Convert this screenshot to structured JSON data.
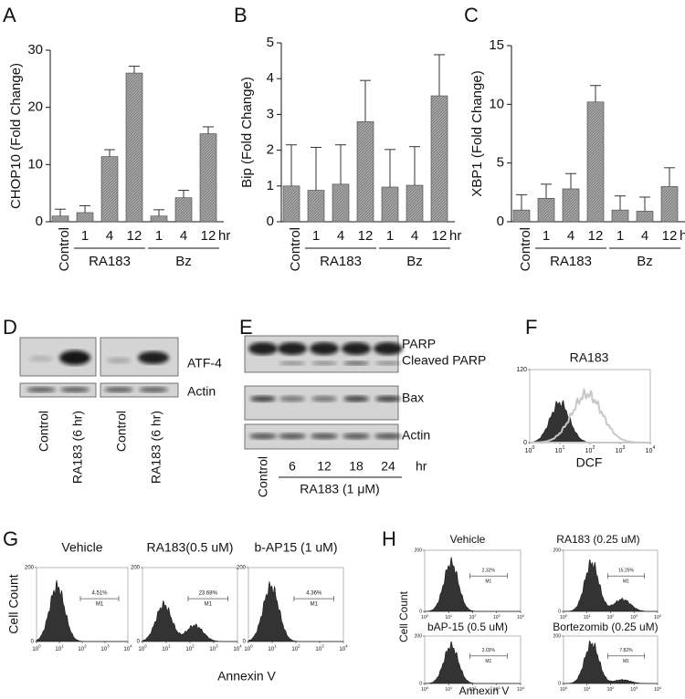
{
  "chart_data": [
    {
      "type": "bar",
      "letter": "A",
      "y_axis_label": "CHOP10 (Fold Change)",
      "categories": [
        "Control",
        "1",
        "4",
        "12",
        "1",
        "4",
        "12"
      ],
      "group_labels": [
        "RA183",
        "Bz"
      ],
      "x_unit": "hr",
      "values": [
        1,
        1.6,
        11.4,
        26,
        1,
        4.2,
        15.4
      ],
      "errors": [
        1.2,
        1.2,
        1.2,
        1.2,
        1.1,
        1.3,
        1.2
      ],
      "color": "#a8a8a8",
      "ylim": [
        0,
        30
      ],
      "yticks": [
        0,
        10,
        20,
        30
      ]
    },
    {
      "type": "bar",
      "letter": "B",
      "y_axis_label": "Bip (Fold Change)",
      "categories": [
        "Control",
        "1",
        "4",
        "12",
        "1",
        "4",
        "12"
      ],
      "group_labels": [
        "RA183",
        "Bz"
      ],
      "x_unit": "hr",
      "values": [
        1,
        0.88,
        1.05,
        2.8,
        0.97,
        1.02,
        3.52
      ],
      "errors": [
        1.15,
        1.2,
        1.1,
        1.15,
        1.05,
        1.08,
        1.15
      ],
      "color": "#a8a8a8",
      "ylim": [
        0,
        5
      ],
      "yticks": [
        0,
        1,
        2,
        3,
        4,
        5
      ]
    },
    {
      "type": "bar",
      "letter": "C",
      "y_axis_label": "XBP1 (Fold Change)",
      "categories": [
        "Control",
        "1",
        "4",
        "12",
        "1",
        "4",
        "12"
      ],
      "group_labels": [
        "RA183",
        "Bz"
      ],
      "x_unit": "hr",
      "values": [
        1,
        2,
        2.8,
        10.2,
        1,
        0.9,
        3
      ],
      "errors": [
        1.3,
        1.2,
        1.3,
        1.4,
        1.2,
        1.2,
        1.6
      ],
      "color": "#a8a8a8",
      "ylim": [
        0,
        15
      ],
      "yticks": [
        0,
        5,
        10,
        15
      ]
    }
  ],
  "blot_d": {
    "letter": "D",
    "rows": [
      "ATF-4",
      "Actin"
    ],
    "lanes": [
      "Control",
      "RA183 (6 hr)",
      "Control",
      "RA183 (6 hr)"
    ]
  },
  "blot_e": {
    "letter": "E",
    "rows": [
      "PARP",
      "Cleaved PARP",
      "Bax",
      "Actin"
    ],
    "lanes": [
      "Control",
      "6",
      "12",
      "18",
      "24"
    ],
    "unit": "hr",
    "treatment": "RA183 (1 μM)"
  },
  "flow_f": {
    "letter": "F",
    "title": "RA183",
    "x_axis_label": "DCF",
    "y_ticks": [
      0,
      120
    ],
    "x_tick_base": "10",
    "x_tick_exponents": [
      0,
      1,
      2,
      3,
      4
    ]
  },
  "flow_g": {
    "letter": "G",
    "y_axis_label": "Cell Count",
    "x_axis_label": "Annexin V",
    "y_ticks": [
      0,
      200
    ],
    "x_tick_base": "10",
    "x_tick_exponents": [
      0,
      1,
      2,
      3,
      4
    ],
    "plots": [
      {
        "title": "Vehicle",
        "gate_percent": "4.51%",
        "gate_label": "M1"
      },
      {
        "title": "RA183(0.5 uM)",
        "gate_percent": "23.68%",
        "gate_label": "M1"
      },
      {
        "title": "b-AP15 (1 uM)",
        "gate_percent": "4.36%",
        "gate_label": "M1"
      }
    ]
  },
  "flow_h": {
    "letter": "H",
    "y_axis_label": "Cell Count",
    "x_axis_label": "Annexin V",
    "y_ticks": [
      0,
      200
    ],
    "x_tick_base": "10",
    "x_tick_exponents": [
      0,
      1,
      2,
      3,
      4
    ],
    "plots": [
      {
        "title": "Vehicle",
        "gate_percent": "2.32%",
        "gate_label": "M1"
      },
      {
        "title": "RA183 (0.25 uM)",
        "gate_percent": "15.25%",
        "gate_label": "M1"
      },
      {
        "title": "bAP-15 (0.5 uM)",
        "gate_percent": "2.03%",
        "gate_label": "M1"
      },
      {
        "title": "Bortezomib (0.25 uM)",
        "gate_percent": "7.82%",
        "gate_label": "M1"
      }
    ]
  }
}
